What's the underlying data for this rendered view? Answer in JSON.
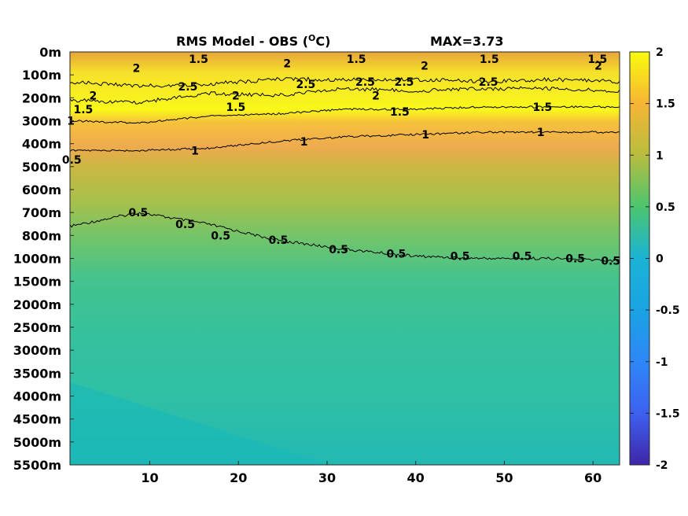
{
  "chart_data": {
    "type": "heatmap",
    "title_left": "RMS Model - OBS (",
    "title_sup": "O",
    "title_right": "C)",
    "max_label": "MAX=3.73",
    "x_ticks": [
      10,
      20,
      30,
      40,
      50,
      60
    ],
    "xlim": [
      1,
      63
    ],
    "y_ticks": [
      "0m",
      "100m",
      "200m",
      "300m",
      "400m",
      "500m",
      "600m",
      "700m",
      "800m",
      "1000m",
      "1500m",
      "2000m",
      "2500m",
      "3000m",
      "3500m",
      "4000m",
      "4500m",
      "5000m",
      "5500m"
    ],
    "colorbar": {
      "range": [
        -2,
        2
      ],
      "ticks": [
        "2",
        "1.5",
        "1",
        "0.5",
        "0",
        "-0.5",
        "-1",
        "-1.5",
        "-2"
      ]
    },
    "colors": {
      "c_neg2": "#3e26a8",
      "c_neg1": "#2e87f7",
      "c_0": "#1ab3d4",
      "c_05": "#35c29b",
      "c_07": "#7dc566",
      "c_1": "#b8bd3f",
      "c_15": "#f6b534",
      "c_2": "#f9fb0e"
    },
    "contours": [
      {
        "level": "0.5",
        "depth_index": [
          7.6,
          7.0,
          7.5,
          8.2,
          8.6,
          8.9,
          9.0,
          9.0,
          9.1
        ]
      },
      {
        "level": "1",
        "depth_index": [
          4.3,
          4.3,
          4.2,
          3.9,
          3.7,
          3.6,
          3.5,
          3.5,
          3.5
        ]
      },
      {
        "level": "1.5",
        "depth_index": [
          3.0,
          3.1,
          2.8,
          2.7,
          2.5,
          2.5,
          2.4,
          2.4,
          2.4
        ]
      },
      {
        "level": "2",
        "depth_index": [
          2.1,
          2.2,
          1.8,
          1.9,
          1.6,
          1.7,
          1.6,
          1.6,
          1.7
        ]
      },
      {
        "level": "2.5",
        "depth_index": [
          1.3,
          1.5,
          1.4,
          1.2,
          1.2,
          1.2,
          1.3,
          1.2,
          1.3
        ]
      }
    ],
    "contour_labels": [
      {
        "text": "1.5",
        "x": 15.5,
        "y": 0.3
      },
      {
        "text": "2",
        "x": 25.5,
        "y": 0.5
      },
      {
        "text": "1.5",
        "x": 33.3,
        "y": 0.3
      },
      {
        "text": "2",
        "x": 41.0,
        "y": 0.6
      },
      {
        "text": "1.5",
        "x": 48.3,
        "y": 0.3
      },
      {
        "text": "1.5",
        "x": 60.5,
        "y": 0.3
      },
      {
        "text": "2",
        "x": 60.6,
        "y": 0.6
      },
      {
        "text": "2",
        "x": 8.5,
        "y": 0.7
      },
      {
        "text": "2.5",
        "x": 14.3,
        "y": 1.5
      },
      {
        "text": "2.5",
        "x": 27.6,
        "y": 1.4
      },
      {
        "text": "2.5",
        "x": 34.3,
        "y": 1.3
      },
      {
        "text": "2.5",
        "x": 38.7,
        "y": 1.3
      },
      {
        "text": "2.5",
        "x": 48.2,
        "y": 1.3
      },
      {
        "text": "2",
        "x": 19.7,
        "y": 1.9
      },
      {
        "text": "2",
        "x": 3.6,
        "y": 1.9
      },
      {
        "text": "2",
        "x": 35.5,
        "y": 1.9
      },
      {
        "text": "1.5",
        "x": 19.7,
        "y": 2.4
      },
      {
        "text": "1.5",
        "x": 2.5,
        "y": 2.5
      },
      {
        "text": "1.5",
        "x": 38.2,
        "y": 2.6
      },
      {
        "text": "1.5",
        "x": 54.3,
        "y": 2.4
      },
      {
        "text": "1",
        "x": 1.1,
        "y": 3.0
      },
      {
        "text": "1",
        "x": 15.1,
        "y": 4.3
      },
      {
        "text": "1",
        "x": 27.4,
        "y": 3.9
      },
      {
        "text": "1",
        "x": 41.1,
        "y": 3.6
      },
      {
        "text": "1",
        "x": 54.1,
        "y": 3.5
      },
      {
        "text": "0.5",
        "x": 1.2,
        "y": 4.7
      },
      {
        "text": "0.5",
        "x": 8.7,
        "y": 7.0
      },
      {
        "text": "0.5",
        "x": 14.0,
        "y": 7.5
      },
      {
        "text": "0.5",
        "x": 18.0,
        "y": 8.0
      },
      {
        "text": "0.5",
        "x": 24.5,
        "y": 8.2
      },
      {
        "text": "0.5",
        "x": 31.3,
        "y": 8.6
      },
      {
        "text": "0.5",
        "x": 37.8,
        "y": 8.8
      },
      {
        "text": "0.5",
        "x": 45.0,
        "y": 8.9
      },
      {
        "text": "0.5",
        "x": 52.0,
        "y": 8.9
      },
      {
        "text": "0.5",
        "x": 58.0,
        "y": 9.0
      },
      {
        "text": "0.5",
        "x": 62.0,
        "y": 9.1
      }
    ]
  }
}
